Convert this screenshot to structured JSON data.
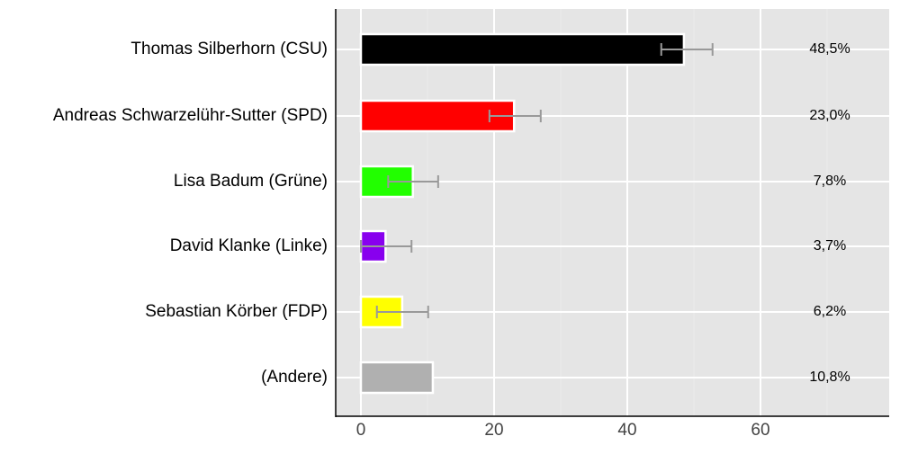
{
  "chart_data": {
    "type": "bar",
    "orientation": "horizontal",
    "title": "",
    "xlabel": "",
    "ylabel": "",
    "categories": [
      "Thomas Silberhorn (CSU)",
      "Andreas Schwarzelühr-Sutter (SPD)",
      "Lisa Badum (Grüne)",
      "David Klanke (Linke)",
      "Sebastian Körber (FDP)",
      "(Andere)"
    ],
    "values": [
      48.5,
      23.0,
      7.8,
      3.7,
      6.2,
      10.8
    ],
    "value_labels": [
      "48,5%",
      "23,0%",
      "7,8%",
      "3,7%",
      "6,2%",
      "10,8%"
    ],
    "colors": [
      "#000000",
      "#ff0000",
      "#22ff00",
      "#8800ee",
      "#ffff00",
      "#b0b0b0"
    ],
    "error_bars": [
      {
        "low": 45.1,
        "high": 52.8
      },
      {
        "low": 19.3,
        "high": 27.0
      },
      {
        "low": 4.1,
        "high": 11.6
      },
      {
        "low": 0.0,
        "high": 7.6
      },
      {
        "low": 2.4,
        "high": 10.1
      },
      null
    ],
    "xticks": [
      0,
      20,
      40,
      60
    ],
    "xtick_labels": [
      "0",
      "20",
      "40",
      "60"
    ],
    "xlim": [
      -3.8,
      75.5
    ],
    "grid": true,
    "legend": null
  }
}
